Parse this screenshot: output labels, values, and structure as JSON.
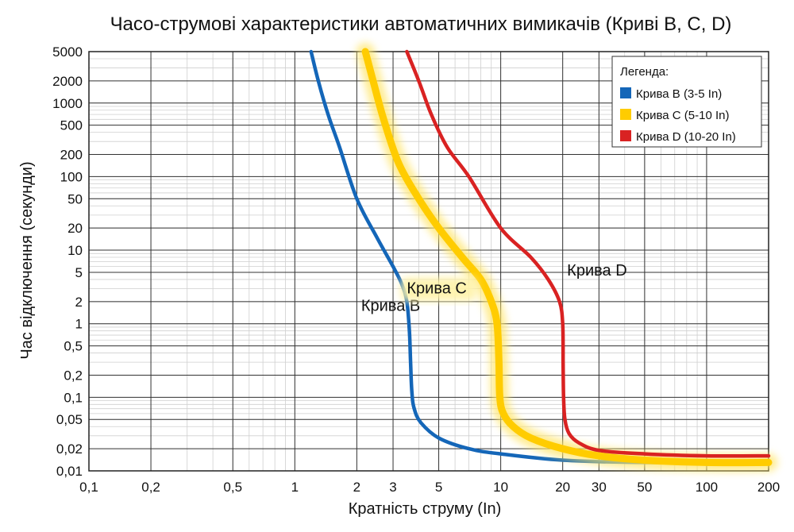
{
  "chart_data": {
    "type": "line",
    "title": "Часо-струмові характеристики автоматичних вимикачів (Криві B, C, D)",
    "xlabel": "Кратність струму (In)",
    "ylabel": "Час відключення (секунди)",
    "x_scale": "log",
    "y_scale": "log",
    "xlim": [
      0.1,
      200
    ],
    "ylim": [
      0.01,
      5000
    ],
    "x_ticks": [
      {
        "value": 0.1,
        "label": "0,1"
      },
      {
        "value": 0.2,
        "label": "0,2"
      },
      {
        "value": 0.5,
        "label": "0,5"
      },
      {
        "value": 1,
        "label": "1"
      },
      {
        "value": 2,
        "label": "2"
      },
      {
        "value": 3,
        "label": "3"
      },
      {
        "value": 5,
        "label": "5"
      },
      {
        "value": 10,
        "label": "10"
      },
      {
        "value": 20,
        "label": "20"
      },
      {
        "value": 30,
        "label": "30"
      },
      {
        "value": 50,
        "label": "50"
      },
      {
        "value": 100,
        "label": "100"
      },
      {
        "value": 200,
        "label": "200"
      }
    ],
    "y_ticks": [
      {
        "value": 5000,
        "label": "5000"
      },
      {
        "value": 2000,
        "label": "2000"
      },
      {
        "value": 1000,
        "label": "1000"
      },
      {
        "value": 500,
        "label": "500"
      },
      {
        "value": 200,
        "label": "200"
      },
      {
        "value": 100,
        "label": "100"
      },
      {
        "value": 50,
        "label": "50"
      },
      {
        "value": 20,
        "label": "20"
      },
      {
        "value": 10,
        "label": "10"
      },
      {
        "value": 5,
        "label": "5"
      },
      {
        "value": 2,
        "label": "2"
      },
      {
        "value": 1,
        "label": "1"
      },
      {
        "value": 0.5,
        "label": "0,5"
      },
      {
        "value": 0.2,
        "label": "0,2"
      },
      {
        "value": 0.1,
        "label": "0,1"
      },
      {
        "value": 0.05,
        "label": "0,05"
      },
      {
        "value": 0.02,
        "label": "0,02"
      },
      {
        "value": 0.01,
        "label": "0,01"
      }
    ],
    "grid": true,
    "legend": {
      "title": "Легенда:",
      "position": "top-right"
    },
    "series": [
      {
        "name": "Крива B (3-5 In)",
        "label": "Крива B",
        "color": "#1466b8",
        "points": [
          [
            1.2,
            5000
          ],
          [
            1.3,
            2000
          ],
          [
            1.45,
            700
          ],
          [
            1.65,
            250
          ],
          [
            2.0,
            50
          ],
          [
            2.5,
            15
          ],
          [
            3.0,
            6
          ],
          [
            3.3,
            3.5
          ],
          [
            3.5,
            2
          ],
          [
            3.6,
            0.8
          ],
          [
            3.65,
            0.3
          ],
          [
            3.7,
            0.12
          ],
          [
            3.8,
            0.07
          ],
          [
            4.1,
            0.045
          ],
          [
            5,
            0.028
          ],
          [
            7,
            0.02
          ],
          [
            10,
            0.017
          ],
          [
            20,
            0.014
          ],
          [
            50,
            0.013
          ],
          [
            200,
            0.013
          ]
        ]
      },
      {
        "name": "Крива C (5-10 In)",
        "label": "Крива C",
        "color": "#ffcc00",
        "points": [
          [
            2.2,
            5000
          ],
          [
            2.4,
            2000
          ],
          [
            2.7,
            600
          ],
          [
            3.2,
            150
          ],
          [
            4.0,
            50
          ],
          [
            5.0,
            20
          ],
          [
            6.5,
            8
          ],
          [
            8.0,
            4
          ],
          [
            9.0,
            2
          ],
          [
            9.6,
            1
          ],
          [
            9.8,
            0.3
          ],
          [
            9.9,
            0.1
          ],
          [
            10.3,
            0.06
          ],
          [
            11.5,
            0.04
          ],
          [
            14,
            0.028
          ],
          [
            20,
            0.02
          ],
          [
            30,
            0.016
          ],
          [
            50,
            0.014
          ],
          [
            100,
            0.013
          ],
          [
            200,
            0.013
          ]
        ]
      },
      {
        "name": "Крива D (10-20 In)",
        "label": "Крива D",
        "color": "#d92222",
        "points": [
          [
            3.5,
            5000
          ],
          [
            4.0,
            2000
          ],
          [
            4.6,
            700
          ],
          [
            5.5,
            250
          ],
          [
            7.0,
            100
          ],
          [
            10,
            20
          ],
          [
            14,
            8
          ],
          [
            17,
            4
          ],
          [
            19.3,
            2
          ],
          [
            20,
            1
          ],
          [
            20.1,
            0.3
          ],
          [
            20.2,
            0.1
          ],
          [
            20.5,
            0.05
          ],
          [
            21.5,
            0.032
          ],
          [
            24,
            0.024
          ],
          [
            30,
            0.019
          ],
          [
            50,
            0.017
          ],
          [
            100,
            0.016
          ],
          [
            200,
            0.016
          ]
        ]
      }
    ],
    "annotations": [
      {
        "series": "Крива B",
        "text": "Крива B",
        "x": 2.1,
        "y": 1.5
      },
      {
        "series": "Крива C",
        "text": "Крива C",
        "x": 3.5,
        "y": 2.6
      },
      {
        "series": "Крива D",
        "text": "Крива D",
        "x": 21,
        "y": 4.5
      }
    ]
  }
}
